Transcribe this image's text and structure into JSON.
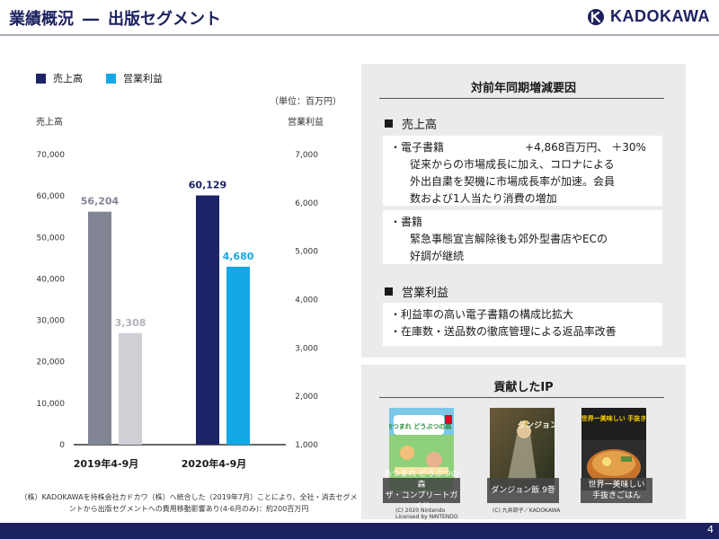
{
  "header": {
    "title": "業績概況",
    "dash": "―",
    "subtitle": "出版セグメント",
    "logo_text": "KADOKAWA"
  },
  "legend": [
    {
      "label": "売上高",
      "color": "#1c2366"
    },
    {
      "label": "営業利益",
      "color": "#13a7e6"
    }
  ],
  "unit_label": "（単位：百万円）",
  "left_axis_title": "売上高",
  "right_axis_title": "営業利益",
  "chart_data": {
    "type": "bar",
    "categories": [
      "2019年4-9月",
      "2020年4-9月"
    ],
    "series": [
      {
        "name": "売上高",
        "axis": "left",
        "values": [
          56204,
          60129
        ],
        "labels": [
          "56,204",
          "60,129"
        ],
        "colors": [
          "#828594",
          "#1c2366"
        ],
        "label_colors": [
          "#828594",
          "#1c2366"
        ]
      },
      {
        "name": "営業利益",
        "axis": "right",
        "values": [
          3308,
          4680
        ],
        "labels": [
          "3,308",
          "4,680"
        ],
        "colors": [
          "#cfd0d6",
          "#13a7e6"
        ],
        "label_colors": [
          "#b3b4bb",
          "#13a7e6"
        ]
      }
    ],
    "left_ticks": [
      "0",
      "10,000",
      "20,000",
      "30,000",
      "40,000",
      "50,000",
      "60,000",
      "70,000"
    ],
    "right_ticks": [
      "1,000",
      "2,000",
      "3,000",
      "4,000",
      "5,000",
      "6,000",
      "7,000"
    ],
    "ylim_left": [
      0,
      70000
    ],
    "ylim_right": [
      1000,
      7000
    ],
    "grid": false
  },
  "footnote": "（株）KADOKAWAを持株会社カドカワ（株）へ統合した（2019年7月）ことにより、全社・消去セグメントから出版セグメントへの費用移動影響あり(4-6月のみ)：約200百万円",
  "factors": {
    "title": "対前年同期増減要因",
    "sales": {
      "heading": "売上高",
      "ebook_label": "・電子書籍",
      "ebook_value": "+4,868百万円、 ＋30%",
      "ebook_lines": [
        "従来からの市場成長に加え、コロナによる",
        "外出自粛を契機に市場成長率が加速。会員",
        "数および1人当たり消費の増加"
      ],
      "books_label": "・書籍",
      "books_lines": [
        "緊急事態宣言解除後も郊外型書店やECの",
        "好調が継続"
      ]
    },
    "profit": {
      "heading": "営業利益",
      "items": [
        "・利益率の高い電子書籍の構成比拡大",
        "・在庫数・送品数の徹底管理による返品率改善"
      ]
    }
  },
  "ip": {
    "title": "貢献したIP",
    "items": [
      {
        "caption_1": "あつまれ どうぶつの森",
        "caption_2": "ザ・コンプリートガイド",
        "credit_1": "(C) 2020 Nintendo",
        "credit_2": "Licensed by NINTENDO",
        "cover_text": "あつまれ どうぶつの森"
      },
      {
        "caption_1": "ダンジョン飯 9巻",
        "caption_2": "",
        "credit_1": "(C) 九井諒子／KADOKAWA",
        "credit_2": "",
        "cover_text": "ダンジョン飯"
      },
      {
        "caption_1": "世界一美味しい",
        "caption_2": "手抜きごはん",
        "credit_1": "",
        "credit_2": "",
        "cover_text": "世界一美味しい 手抜き"
      }
    ]
  },
  "page_number": "4"
}
